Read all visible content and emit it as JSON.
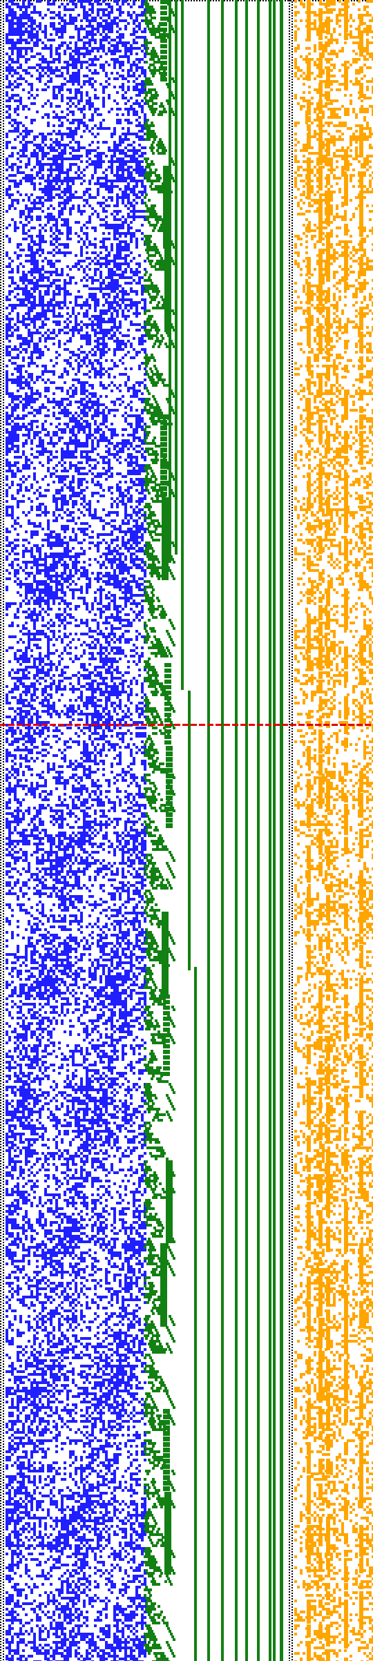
{
  "figure": {
    "kind": "cellular-automaton-style binary pattern visualization",
    "background_color": "#ffffff"
  },
  "panels": [
    {
      "name": "left-dense-pattern",
      "color": "#1f1fff",
      "cell_count_x": 47,
      "fill_density": 0.52,
      "description_icon": "dense-noise"
    },
    {
      "name": "middle-staircase-pattern",
      "color": "#128012",
      "fill_density": 0.18,
      "description_icon": "staircase-bars"
    },
    {
      "name": "right-sparse-pattern",
      "color": "#ffa500",
      "cell_count_x": 24,
      "fill_density": 0.36,
      "description_icon": "sparse-noise"
    }
  ],
  "separators": {
    "dotted_left_color": "#000000",
    "dotted_right_color": "#000000",
    "top_dotted_color": "#000000"
  },
  "marker": {
    "color": "#e00000",
    "style": "dashed-horizontal-line"
  },
  "chart_data": {
    "type": "heatmap",
    "series": [
      {
        "values": [
          0.52
        ]
      },
      {
        "values": [
          0.18
        ]
      },
      {
        "values": [
          0.36
        ]
      }
    ]
  }
}
